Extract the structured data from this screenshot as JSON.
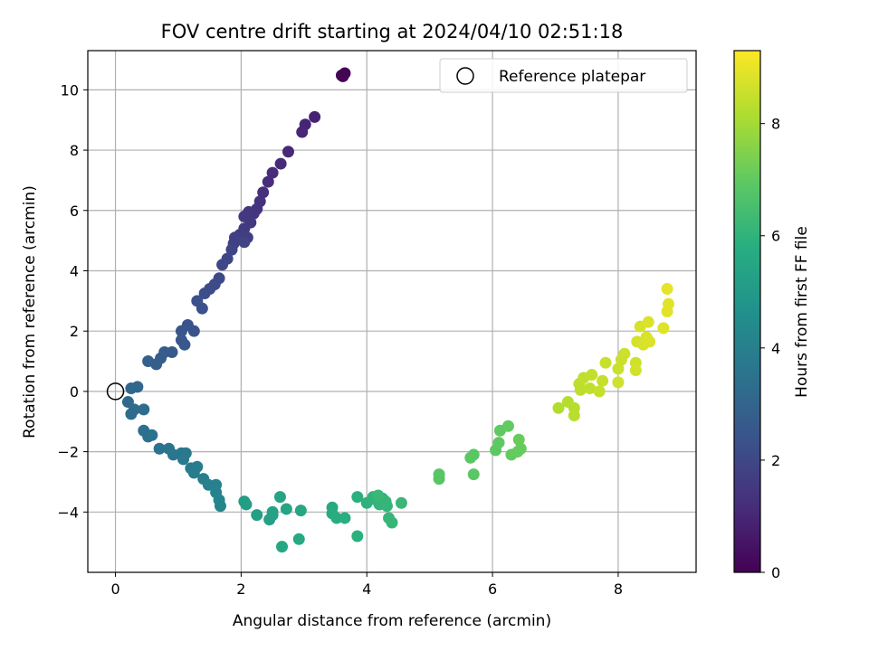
{
  "chart_data": {
    "type": "scatter",
    "title": "FOV centre drift starting at 2024/04/10 02:51:18",
    "xlabel": "Angular distance from reference (arcmin)",
    "ylabel": "Rotation from reference (arcmin)",
    "xlim": [
      -0.44,
      9.24
    ],
    "ylim": [
      -6.0,
      11.3
    ],
    "xticks": [
      0,
      2,
      4,
      6,
      8
    ],
    "yticks": [
      -4,
      -2,
      0,
      2,
      4,
      6,
      8,
      10
    ],
    "grid": true,
    "legend": {
      "placement": "top-right",
      "entries": [
        {
          "label": "Reference platepar",
          "marker": "open-circle"
        }
      ]
    },
    "reference_point": {
      "x": 0,
      "y": 0
    },
    "colorbar": {
      "label": "Hours from first FF file",
      "colormap": "viridis",
      "range": [
        0,
        9.3
      ],
      "ticks": [
        0,
        2,
        4,
        6,
        8
      ]
    },
    "points": [
      {
        "x": 3.62,
        "y": 10.45,
        "c": 0.0
      },
      {
        "x": 3.65,
        "y": 10.55,
        "c": 0.05
      },
      {
        "x": 3.6,
        "y": 10.48,
        "c": 0.08
      },
      {
        "x": 3.63,
        "y": 10.5,
        "c": 0.1
      },
      {
        "x": 3.17,
        "y": 9.1,
        "c": 0.9
      },
      {
        "x": 3.02,
        "y": 8.85,
        "c": 0.95
      },
      {
        "x": 2.97,
        "y": 8.6,
        "c": 1.0
      },
      {
        "x": 2.75,
        "y": 7.95,
        "c": 1.05
      },
      {
        "x": 2.63,
        "y": 7.55,
        "c": 1.1
      },
      {
        "x": 2.5,
        "y": 7.25,
        "c": 1.15
      },
      {
        "x": 2.43,
        "y": 6.95,
        "c": 1.2
      },
      {
        "x": 2.35,
        "y": 6.6,
        "c": 1.25
      },
      {
        "x": 2.3,
        "y": 6.3,
        "c": 1.3
      },
      {
        "x": 2.25,
        "y": 6.05,
        "c": 1.35
      },
      {
        "x": 2.2,
        "y": 5.9,
        "c": 1.4
      },
      {
        "x": 2.12,
        "y": 5.95,
        "c": 1.45
      },
      {
        "x": 2.05,
        "y": 5.8,
        "c": 1.5
      },
      {
        "x": 2.15,
        "y": 5.6,
        "c": 1.55
      },
      {
        "x": 2.05,
        "y": 5.4,
        "c": 1.6
      },
      {
        "x": 1.98,
        "y": 5.2,
        "c": 1.65
      },
      {
        "x": 2.1,
        "y": 5.1,
        "c": 1.7
      },
      {
        "x": 1.9,
        "y": 5.1,
        "c": 1.75
      },
      {
        "x": 1.88,
        "y": 4.9,
        "c": 1.8
      },
      {
        "x": 2.05,
        "y": 4.95,
        "c": 1.85
      },
      {
        "x": 1.85,
        "y": 4.7,
        "c": 1.9
      },
      {
        "x": 1.78,
        "y": 4.4,
        "c": 1.95
      },
      {
        "x": 1.7,
        "y": 4.2,
        "c": 2.0
      },
      {
        "x": 1.65,
        "y": 3.75,
        "c": 2.05
      },
      {
        "x": 1.58,
        "y": 3.55,
        "c": 2.1
      },
      {
        "x": 1.5,
        "y": 3.4,
        "c": 2.15
      },
      {
        "x": 1.42,
        "y": 3.25,
        "c": 2.2
      },
      {
        "x": 1.3,
        "y": 3.0,
        "c": 2.25
      },
      {
        "x": 1.38,
        "y": 2.75,
        "c": 2.3
      },
      {
        "x": 1.15,
        "y": 2.2,
        "c": 2.35
      },
      {
        "x": 1.25,
        "y": 2.0,
        "c": 2.4
      },
      {
        "x": 1.05,
        "y": 2.0,
        "c": 2.45
      },
      {
        "x": 1.05,
        "y": 1.7,
        "c": 2.5
      },
      {
        "x": 1.1,
        "y": 1.55,
        "c": 2.55
      },
      {
        "x": 0.9,
        "y": 1.3,
        "c": 2.6
      },
      {
        "x": 0.78,
        "y": 1.3,
        "c": 2.65
      },
      {
        "x": 0.72,
        "y": 1.1,
        "c": 2.7
      },
      {
        "x": 0.65,
        "y": 0.9,
        "c": 2.75
      },
      {
        "x": 0.52,
        "y": 1.0,
        "c": 2.8
      },
      {
        "x": 0.35,
        "y": 0.15,
        "c": 3.05
      },
      {
        "x": 0.25,
        "y": 0.1,
        "c": 3.1
      },
      {
        "x": 0.2,
        "y": -0.35,
        "c": 3.15
      },
      {
        "x": 0.3,
        "y": -0.6,
        "c": 3.2
      },
      {
        "x": 0.25,
        "y": -0.75,
        "c": 3.25
      },
      {
        "x": 0.45,
        "y": -0.6,
        "c": 3.3
      },
      {
        "x": 0.45,
        "y": -1.3,
        "c": 3.35
      },
      {
        "x": 0.52,
        "y": -1.5,
        "c": 3.4
      },
      {
        "x": 0.58,
        "y": -1.45,
        "c": 3.45
      },
      {
        "x": 0.7,
        "y": -1.9,
        "c": 3.5
      },
      {
        "x": 0.85,
        "y": -1.9,
        "c": 3.55
      },
      {
        "x": 0.92,
        "y": -2.1,
        "c": 3.6
      },
      {
        "x": 1.05,
        "y": -2.05,
        "c": 3.65
      },
      {
        "x": 1.12,
        "y": -2.05,
        "c": 3.7
      },
      {
        "x": 1.08,
        "y": -2.25,
        "c": 3.75
      },
      {
        "x": 1.2,
        "y": -2.55,
        "c": 3.8
      },
      {
        "x": 1.3,
        "y": -2.5,
        "c": 3.85
      },
      {
        "x": 1.25,
        "y": -2.7,
        "c": 3.9
      },
      {
        "x": 1.4,
        "y": -2.9,
        "c": 3.95
      },
      {
        "x": 1.48,
        "y": -3.1,
        "c": 4.0
      },
      {
        "x": 1.6,
        "y": -3.1,
        "c": 4.05
      },
      {
        "x": 1.6,
        "y": -3.35,
        "c": 4.1
      },
      {
        "x": 1.65,
        "y": -3.6,
        "c": 4.15
      },
      {
        "x": 1.67,
        "y": -3.8,
        "c": 4.2
      },
      {
        "x": 2.05,
        "y": -3.65,
        "c": 5.1
      },
      {
        "x": 2.08,
        "y": -3.75,
        "c": 5.15
      },
      {
        "x": 2.25,
        "y": -4.1,
        "c": 5.2
      },
      {
        "x": 2.45,
        "y": -4.25,
        "c": 5.25
      },
      {
        "x": 2.5,
        "y": -4.1,
        "c": 5.3
      },
      {
        "x": 2.5,
        "y": -4.0,
        "c": 5.35
      },
      {
        "x": 2.62,
        "y": -3.5,
        "c": 5.4
      },
      {
        "x": 2.72,
        "y": -3.9,
        "c": 5.45
      },
      {
        "x": 2.95,
        "y": -3.95,
        "c": 5.5
      },
      {
        "x": 2.65,
        "y": -5.15,
        "c": 5.55
      },
      {
        "x": 2.92,
        "y": -4.9,
        "c": 5.6
      },
      {
        "x": 3.45,
        "y": -3.85,
        "c": 5.65
      },
      {
        "x": 3.45,
        "y": -4.05,
        "c": 5.7
      },
      {
        "x": 3.52,
        "y": -4.2,
        "c": 5.75
      },
      {
        "x": 3.65,
        "y": -4.2,
        "c": 5.8
      },
      {
        "x": 3.85,
        "y": -3.5,
        "c": 5.85
      },
      {
        "x": 3.85,
        "y": -4.8,
        "c": 5.9
      },
      {
        "x": 4.0,
        "y": -3.7,
        "c": 5.95
      },
      {
        "x": 4.1,
        "y": -3.5,
        "c": 6.0
      },
      {
        "x": 4.15,
        "y": -3.6,
        "c": 6.0
      },
      {
        "x": 4.2,
        "y": -3.75,
        "c": 6.05
      },
      {
        "x": 4.25,
        "y": -3.55,
        "c": 6.05
      },
      {
        "x": 4.3,
        "y": -3.65,
        "c": 6.1
      },
      {
        "x": 4.32,
        "y": -3.8,
        "c": 6.1
      },
      {
        "x": 4.35,
        "y": -4.2,
        "c": 6.15
      },
      {
        "x": 4.4,
        "y": -4.35,
        "c": 6.15
      },
      {
        "x": 4.18,
        "y": -3.45,
        "c": 6.2
      },
      {
        "x": 4.55,
        "y": -3.7,
        "c": 6.2
      },
      {
        "x": 5.15,
        "y": -2.75,
        "c": 6.8
      },
      {
        "x": 5.15,
        "y": -2.9,
        "c": 6.82
      },
      {
        "x": 5.7,
        "y": -2.1,
        "c": 6.85
      },
      {
        "x": 5.65,
        "y": -2.2,
        "c": 6.88
      },
      {
        "x": 5.7,
        "y": -2.75,
        "c": 6.9
      },
      {
        "x": 6.05,
        "y": -1.95,
        "c": 6.95
      },
      {
        "x": 6.1,
        "y": -1.7,
        "c": 6.97
      },
      {
        "x": 6.12,
        "y": -1.3,
        "c": 7.0
      },
      {
        "x": 6.25,
        "y": -1.15,
        "c": 7.02
      },
      {
        "x": 6.3,
        "y": -2.1,
        "c": 7.05
      },
      {
        "x": 6.4,
        "y": -2.0,
        "c": 7.08
      },
      {
        "x": 6.45,
        "y": -1.9,
        "c": 7.1
      },
      {
        "x": 6.42,
        "y": -1.6,
        "c": 7.12
      },
      {
        "x": 7.05,
        "y": -0.55,
        "c": 8.2
      },
      {
        "x": 7.2,
        "y": -0.35,
        "c": 8.25
      },
      {
        "x": 7.3,
        "y": -0.55,
        "c": 8.28
      },
      {
        "x": 7.3,
        "y": -0.8,
        "c": 8.3
      },
      {
        "x": 7.38,
        "y": 0.25,
        "c": 8.35
      },
      {
        "x": 7.4,
        "y": 0.05,
        "c": 8.38
      },
      {
        "x": 7.45,
        "y": 0.45,
        "c": 8.4
      },
      {
        "x": 7.55,
        "y": 0.1,
        "c": 8.42
      },
      {
        "x": 7.58,
        "y": 0.55,
        "c": 8.45
      },
      {
        "x": 7.7,
        "y": 0.0,
        "c": 8.48
      },
      {
        "x": 7.75,
        "y": 0.35,
        "c": 8.5
      },
      {
        "x": 7.8,
        "y": 0.95,
        "c": 8.52
      },
      {
        "x": 8.0,
        "y": 0.75,
        "c": 8.55
      },
      {
        "x": 8.05,
        "y": 1.05,
        "c": 8.58
      },
      {
        "x": 8.1,
        "y": 1.25,
        "c": 8.6
      },
      {
        "x": 8.0,
        "y": 0.3,
        "c": 8.62
      },
      {
        "x": 8.28,
        "y": 0.95,
        "c": 8.65
      },
      {
        "x": 8.28,
        "y": 0.7,
        "c": 8.68
      },
      {
        "x": 8.3,
        "y": 1.65,
        "c": 8.7
      },
      {
        "x": 8.35,
        "y": 2.15,
        "c": 8.72
      },
      {
        "x": 8.4,
        "y": 1.55,
        "c": 8.75
      },
      {
        "x": 8.45,
        "y": 1.8,
        "c": 8.78
      },
      {
        "x": 8.48,
        "y": 2.3,
        "c": 8.8
      },
      {
        "x": 8.5,
        "y": 1.65,
        "c": 8.82
      },
      {
        "x": 8.72,
        "y": 2.1,
        "c": 8.85
      },
      {
        "x": 8.78,
        "y": 2.65,
        "c": 8.88
      },
      {
        "x": 8.8,
        "y": 2.9,
        "c": 8.9
      },
      {
        "x": 8.78,
        "y": 3.4,
        "c": 8.95
      }
    ]
  }
}
